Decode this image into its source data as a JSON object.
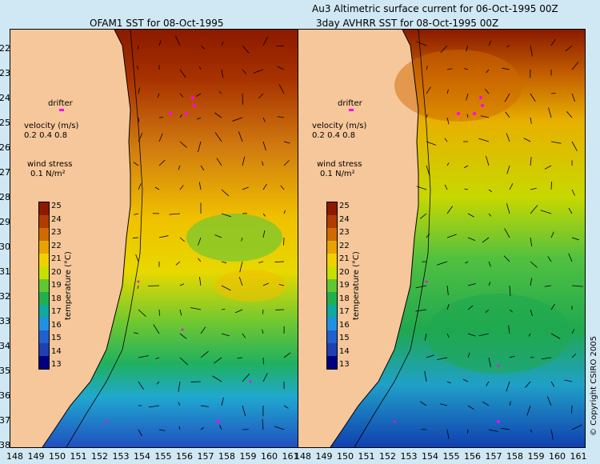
{
  "left_title": "OFAM1 SST for 08-Oct-1995",
  "right_title_line1": "Au3 Altimetric surface current for 06-Oct-1995 00Z",
  "right_title_line2": "3day AVHRR SST for 08-Oct-1995 00Z",
  "latitudes": [
    "22",
    "23",
    "24",
    "25",
    "26",
    "27",
    "28",
    "29",
    "30",
    "31",
    "32",
    "33",
    "34",
    "35",
    "36",
    "37",
    "38"
  ],
  "longitudes": [
    "148",
    "149",
    "150",
    "151",
    "152",
    "153",
    "154",
    "155",
    "156",
    "157",
    "158",
    "159",
    "160",
    "161"
  ],
  "legend": {
    "drifter": "drifter",
    "velocity_title": "velocity (m/s)",
    "velocity_values": "0.2 0.4 0.8",
    "wind_title": "wind stress",
    "wind_value": "0.1 N/m²"
  },
  "colorbar": {
    "title": "temperature (°C)",
    "ticks": [
      "25",
      "24",
      "23",
      "22",
      "21",
      "20",
      "19",
      "18",
      "17",
      "16",
      "15",
      "14",
      "13"
    ],
    "colors": [
      "#8b1a00",
      "#b33b00",
      "#d06a00",
      "#e8a300",
      "#f0d000",
      "#c8e000",
      "#60c830",
      "#20b050",
      "#10a8a0",
      "#2090e0",
      "#2060d0",
      "#2040b0",
      "#000080"
    ]
  },
  "copyright": "© Copyright CSIRO 2005"
}
